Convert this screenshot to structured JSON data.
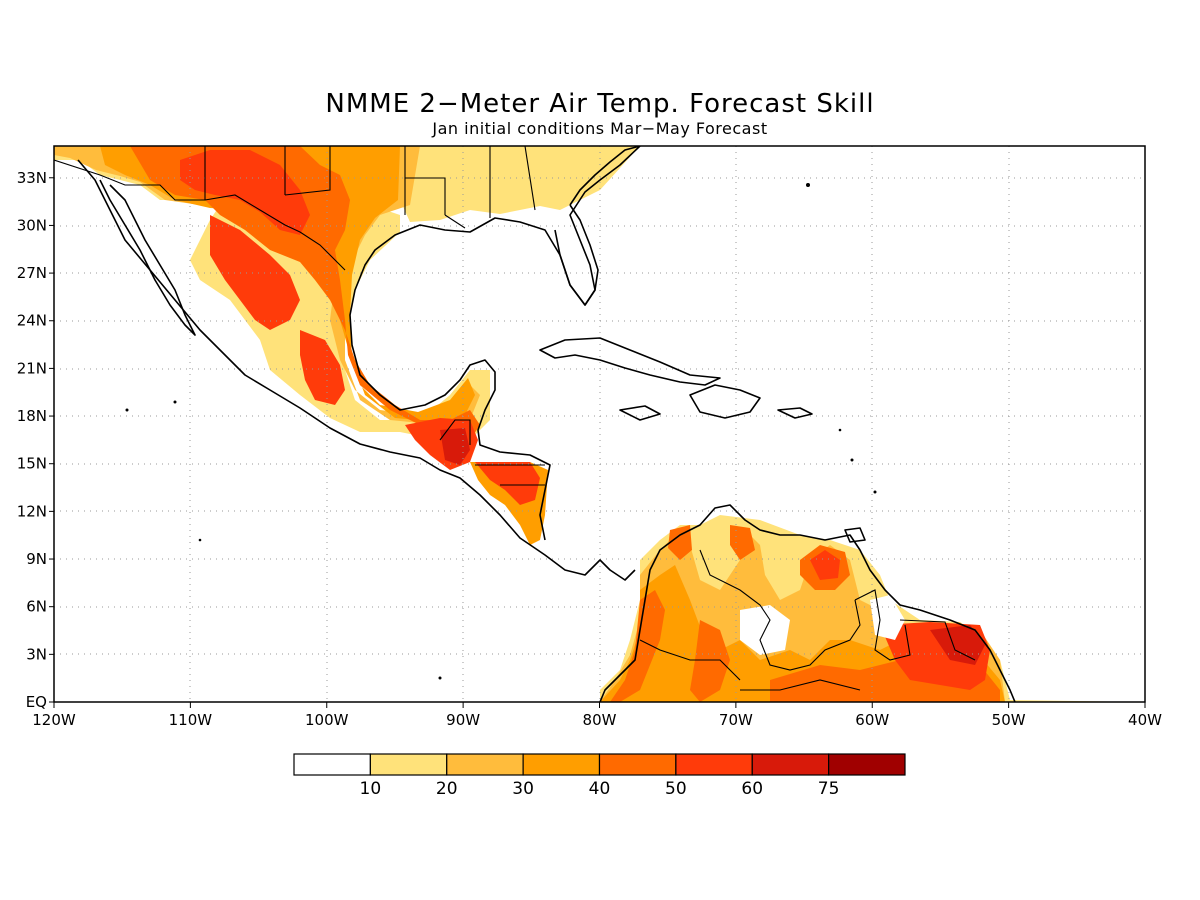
{
  "title": "NMME 2−Meter Air Temp. Forecast Skill",
  "subtitle": "Jan initial conditions  Mar−May Forecast",
  "x_ticks": [
    "120W",
    "110W",
    "100W",
    "90W",
    "80W",
    "70W",
    "60W",
    "50W",
    "40W"
  ],
  "y_ticks": [
    "EQ",
    "3N",
    "6N",
    "9N",
    "12N",
    "15N",
    "18N",
    "21N",
    "24N",
    "27N",
    "30N",
    "33N"
  ],
  "colorbar": {
    "labels": [
      "10",
      "20",
      "30",
      "40",
      "50",
      "60",
      "75"
    ],
    "colors": [
      "#ffffff",
      "#ffe27a",
      "#ffbc3c",
      "#ff9e00",
      "#ff6a00",
      "#ff3b0a",
      "#d81a0a",
      "#a00000"
    ]
  },
  "map": {
    "lon_range": [
      -120,
      -40
    ],
    "lat_range": [
      0,
      35
    ],
    "grid": true,
    "coast_color": "#000000"
  }
}
